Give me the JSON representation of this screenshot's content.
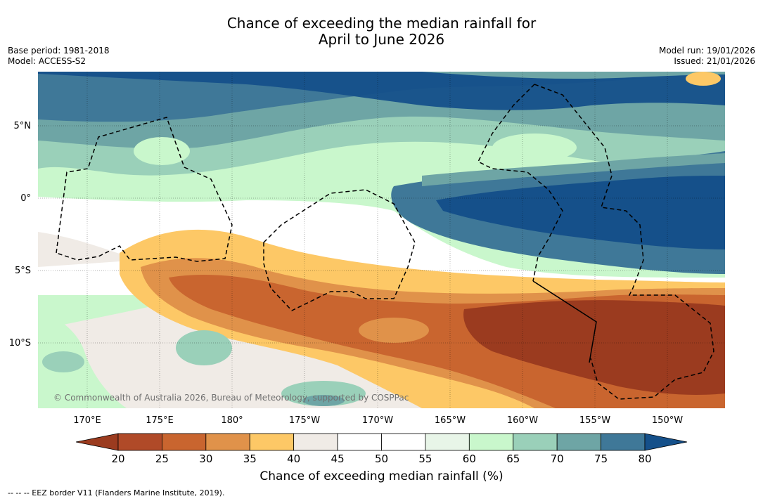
{
  "title": {
    "line1": "Chance of exceeding the median rainfall for",
    "line2": "April to June 2026"
  },
  "meta": {
    "base_period": "Base period: 1981-2018",
    "model": "Model: ACCESS-S2",
    "model_run": "Model run: 19/01/2026",
    "issued": "Issued: 21/01/2026"
  },
  "map": {
    "lon_labels": [
      "170°E",
      "175°E",
      "180°",
      "175°W",
      "170°W",
      "165°W",
      "160°W",
      "155°W",
      "150°W"
    ],
    "lat_labels": [
      "5°N",
      "0°",
      "5°S",
      "10°S"
    ],
    "attribution": "© Commonwealth of Australia 2026, Bureau of Meteorology, supported by COSPPac"
  },
  "colorbar": {
    "ticks": [
      "20",
      "25",
      "30",
      "35",
      "40",
      "45",
      "50",
      "55",
      "60",
      "65",
      "70",
      "75",
      "80"
    ],
    "colors": [
      "#9b3b1f",
      "#b04a28",
      "#c9652f",
      "#e0924a",
      "#fdc866",
      "#f0ebe6",
      "#ffffff",
      "#ffffff",
      "#e8f5e8",
      "#c9f7cc",
      "#9ad0b9",
      "#6ea5a5",
      "#3f7898",
      "#15508a"
    ],
    "title": "Chance of exceeding median rainfall (%)"
  },
  "footer": {
    "eez_note": "--  --  -- EEZ border V11 (Flanders Marine Institute, 2019)."
  }
}
